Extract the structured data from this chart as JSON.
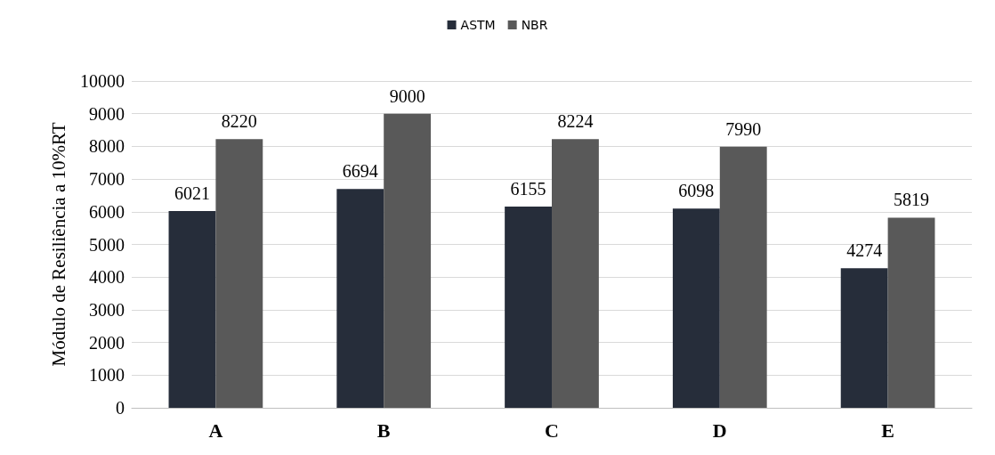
{
  "chart_data": {
    "type": "bar",
    "ylabel": "Módulo de Resiliência a 10%RT",
    "categories": [
      "A",
      "B",
      "C",
      "D",
      "E"
    ],
    "series": [
      {
        "name": "ASTM",
        "color": "#262d3a",
        "values": [
          6021,
          6694,
          6155,
          6098,
          4274
        ]
      },
      {
        "name": "NBR",
        "color": "#595959",
        "values": [
          8220,
          9000,
          8224,
          7990,
          5819
        ]
      }
    ],
    "ylim": [
      0,
      10000
    ],
    "yticks": [
      0,
      1000,
      2000,
      3000,
      4000,
      5000,
      6000,
      7000,
      8000,
      9000,
      10000
    ],
    "grid": "y",
    "legend": "top",
    "data_labels": true
  }
}
